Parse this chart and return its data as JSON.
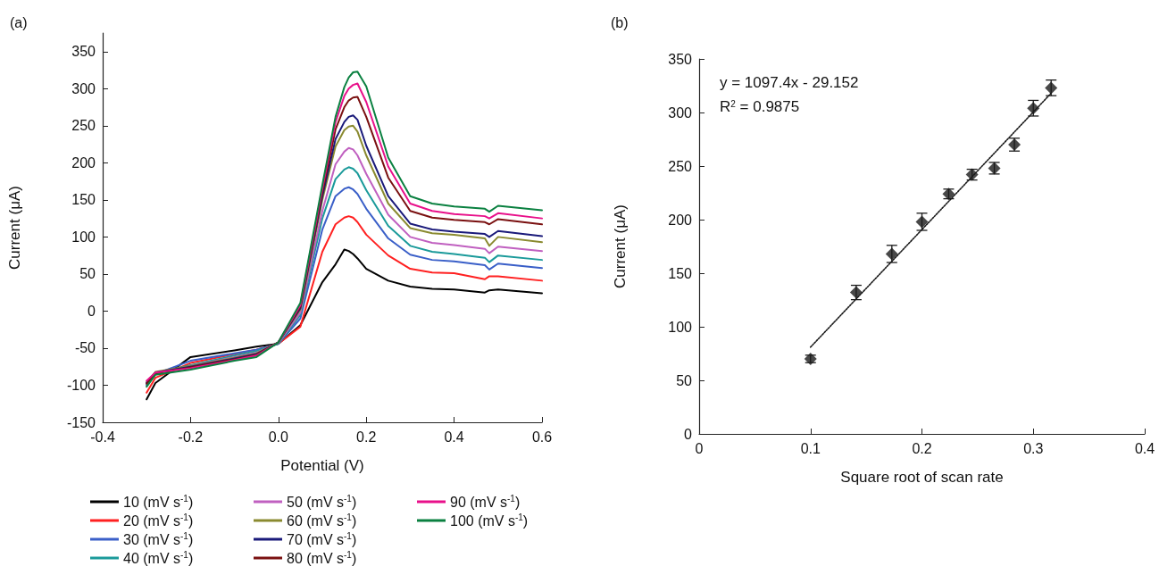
{
  "chart_data": [
    {
      "type": "line",
      "title": "(a)",
      "xlabel": "Potential (V)",
      "ylabel": "Current (μA)",
      "xlim": [
        -0.4,
        0.6
      ],
      "xticks": [
        -0.4,
        -0.2,
        {
          "value": 0,
          "label": "0.0"
        },
        0.2,
        0.4,
        0.6
      ],
      "ylim": [
        -150,
        375
      ],
      "yticks": [
        -150,
        -100,
        -50,
        0,
        50,
        100,
        150,
        200,
        250,
        300,
        350
      ],
      "marker": "none",
      "legend": "bottom",
      "x": [
        -0.3,
        -0.28,
        -0.2,
        -0.1,
        -0.05,
        0,
        0.05,
        0.1,
        0.13,
        0.15,
        0.16,
        0.17,
        0.18,
        0.2,
        0.25,
        0.3,
        0.35,
        0.4,
        0.47,
        0.48,
        0.5,
        0.6
      ],
      "series": [
        {
          "name": "10 (mV s$^{-1}$)",
          "color": "#000000",
          "values": [
            -119,
            -97,
            -62,
            -53,
            -48,
            -44,
            -19,
            39,
            63,
            83,
            81,
            77,
            71,
            57,
            41,
            33,
            30,
            29,
            25,
            28,
            29,
            24
          ]
        },
        {
          "name": "20 (mV s$^{-1}$)",
          "color": "#ff2020",
          "values": [
            -110,
            -90,
            -70,
            -58,
            -52,
            -44,
            -21,
            80,
            117,
            126,
            128,
            126,
            120,
            103,
            75,
            57,
            52,
            51,
            43,
            47,
            47,
            41
          ]
        },
        {
          "name": "30 (mV s$^{-1}$)",
          "color": "#3a5fc8",
          "values": [
            -100,
            -85,
            -67,
            -57,
            -52,
            -44,
            -10,
            110,
            155,
            165,
            167,
            164,
            158,
            138,
            98,
            76,
            69,
            67,
            62,
            56,
            64,
            58
          ]
        },
        {
          "name": "40 (mV s$^{-1}$)",
          "color": "#1a9a9a",
          "values": [
            -98,
            -84,
            -73,
            -60,
            -54,
            -44,
            -5,
            125,
            178,
            191,
            194,
            192,
            186,
            163,
            115,
            88,
            80,
            77,
            72,
            66,
            75,
            69
          ]
        },
        {
          "name": "50 (mV s$^{-1}$)",
          "color": "#c060c0",
          "values": [
            null,
            null,
            -74,
            -62,
            -56,
            -43,
            -2,
            135,
            198,
            215,
            220,
            218,
            210,
            185,
            130,
            100,
            92,
            89,
            84,
            78,
            87,
            81
          ]
        },
        {
          "name": "60 (mV s$^{-1}$)",
          "color": "#8a8a30",
          "values": [
            -96,
            -82,
            -74,
            -63,
            -57,
            -42,
            2,
            150,
            222,
            244,
            249,
            250,
            242,
            210,
            145,
            112,
            105,
            103,
            98,
            88,
            100,
            93
          ]
        },
        {
          "name": "70 (mV s$^{-1}$)",
          "color": "#1a1a7a",
          "values": [
            -97,
            -83,
            -75,
            -64,
            -58,
            -42,
            4,
            155,
            232,
            255,
            262,
            264,
            258,
            223,
            155,
            118,
            110,
            107,
            104,
            100,
            108,
            101
          ]
        },
        {
          "name": "80 (mV s$^{-1}$)",
          "color": "#7a1010",
          "values": [
            -98,
            -84,
            -76,
            -65,
            -59,
            -42,
            6,
            160,
            245,
            275,
            284,
            288,
            289,
            262,
            180,
            135,
            126,
            123,
            120,
            117,
            124,
            117
          ]
        },
        {
          "name": "90 (mV s$^{-1}$)",
          "color": "#e8108a",
          "values": [
            -94,
            -83,
            -77,
            -66,
            -60,
            -42,
            8,
            165,
            255,
            290,
            300,
            305,
            307,
            282,
            195,
            145,
            135,
            131,
            128,
            125,
            132,
            125
          ]
        },
        {
          "name": "100 (mV s$^{-1}$)",
          "color": "#0a8040",
          "values": [
            -102,
            -86,
            -79,
            -67,
            -62,
            -42,
            11,
            170,
            262,
            302,
            315,
            322,
            323,
            303,
            207,
            155,
            145,
            141,
            138,
            134,
            142,
            136
          ]
        }
      ]
    },
    {
      "type": "scatter",
      "title": "(b)",
      "xlabel": "Square root of scan rate",
      "ylabel": "Current (μA)",
      "xlim": [
        0,
        0.4
      ],
      "xticks": [
        0,
        0.1,
        0.2,
        0.3,
        0.4
      ],
      "ylim": [
        0,
        350
      ],
      "yticks": [
        0,
        50,
        100,
        150,
        200,
        250,
        300,
        350
      ],
      "annotations": [
        "y = 1097.4x - 29.152",
        "R$^{2}$ = 0.9875"
      ],
      "series": [
        {
          "marker": "diamond",
          "color": "#1a1a1a",
          "x": [
            0.1,
            0.141,
            0.173,
            0.2,
            0.224,
            0.245,
            0.265,
            0.283,
            0.3,
            0.316
          ],
          "values": [
            70,
            132,
            168,
            198,
            224,
            242,
            248,
            270,
            304,
            323
          ],
          "errors": [
            3.5,
            6.7,
            8,
            8,
            4.5,
            5,
            5.4,
            6,
            7.3,
            7.3
          ]
        },
        {
          "type": "line",
          "marker": "none",
          "line_style": "dotted",
          "color": "#1a1a1a",
          "x": [
            0.1,
            0.316
          ],
          "values": [
            81,
            318
          ]
        }
      ]
    }
  ]
}
